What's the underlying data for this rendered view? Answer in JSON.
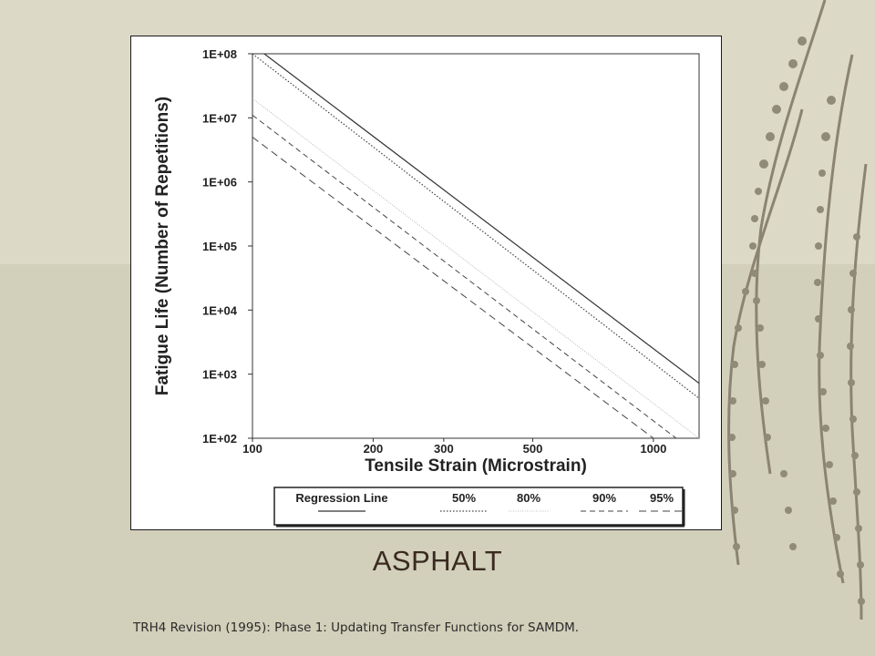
{
  "slide": {
    "title": "ASPHALT",
    "source": "TRH4 Revision (1995): Phase 1: Updating Transfer Functions for SAMDM."
  },
  "colors": {
    "background": "#d9d6c3",
    "title_text": "#3a2a20",
    "plot_line": "#333333"
  },
  "chart_data": {
    "type": "line",
    "title": "",
    "xlabel": "Tensile Strain (Microstrain)",
    "ylabel": "Fatigue Life (Number of Repetitions)",
    "x_scale": "log",
    "y_scale": "log",
    "xlim": [
      100,
      1300
    ],
    "ylim": [
      100,
      100000000
    ],
    "x_ticks": [
      {
        "value": 100,
        "label": "100"
      },
      {
        "value": 200,
        "label": "200"
      },
      {
        "value": 300,
        "label": "300"
      },
      {
        "value": 500,
        "label": "500"
      },
      {
        "value": 1000,
        "label": "1000"
      }
    ],
    "y_ticks": [
      {
        "value": 100,
        "label": "1E+02"
      },
      {
        "value": 1000,
        "label": "1E+03"
      },
      {
        "value": 10000,
        "label": "1E+04"
      },
      {
        "value": 100000,
        "label": "1E+05"
      },
      {
        "value": 1000000,
        "label": "1E+06"
      },
      {
        "value": 10000000,
        "label": "1E+07"
      },
      {
        "value": 100000000,
        "label": "1E+08"
      }
    ],
    "grid": false,
    "legend_position": "bottom",
    "series": [
      {
        "name": "Regression Line",
        "style": "solid",
        "x": [
          107,
          1300
        ],
        "y": [
          100000000,
          720
        ]
      },
      {
        "name": "50%",
        "style": "dotted",
        "x": [
          100,
          1300
        ],
        "y": [
          100000000,
          420
        ]
      },
      {
        "name": "80%",
        "style": "dense-dotted",
        "x": [
          100,
          1300
        ],
        "y": [
          20000000,
          100
        ]
      },
      {
        "name": "90%",
        "style": "dashed",
        "x": [
          100,
          1140
        ],
        "y": [
          11000000,
          100
        ]
      },
      {
        "name": "95%",
        "style": "long-dashed",
        "x": [
          100,
          1000
        ],
        "y": [
          5000000,
          100
        ]
      }
    ]
  }
}
